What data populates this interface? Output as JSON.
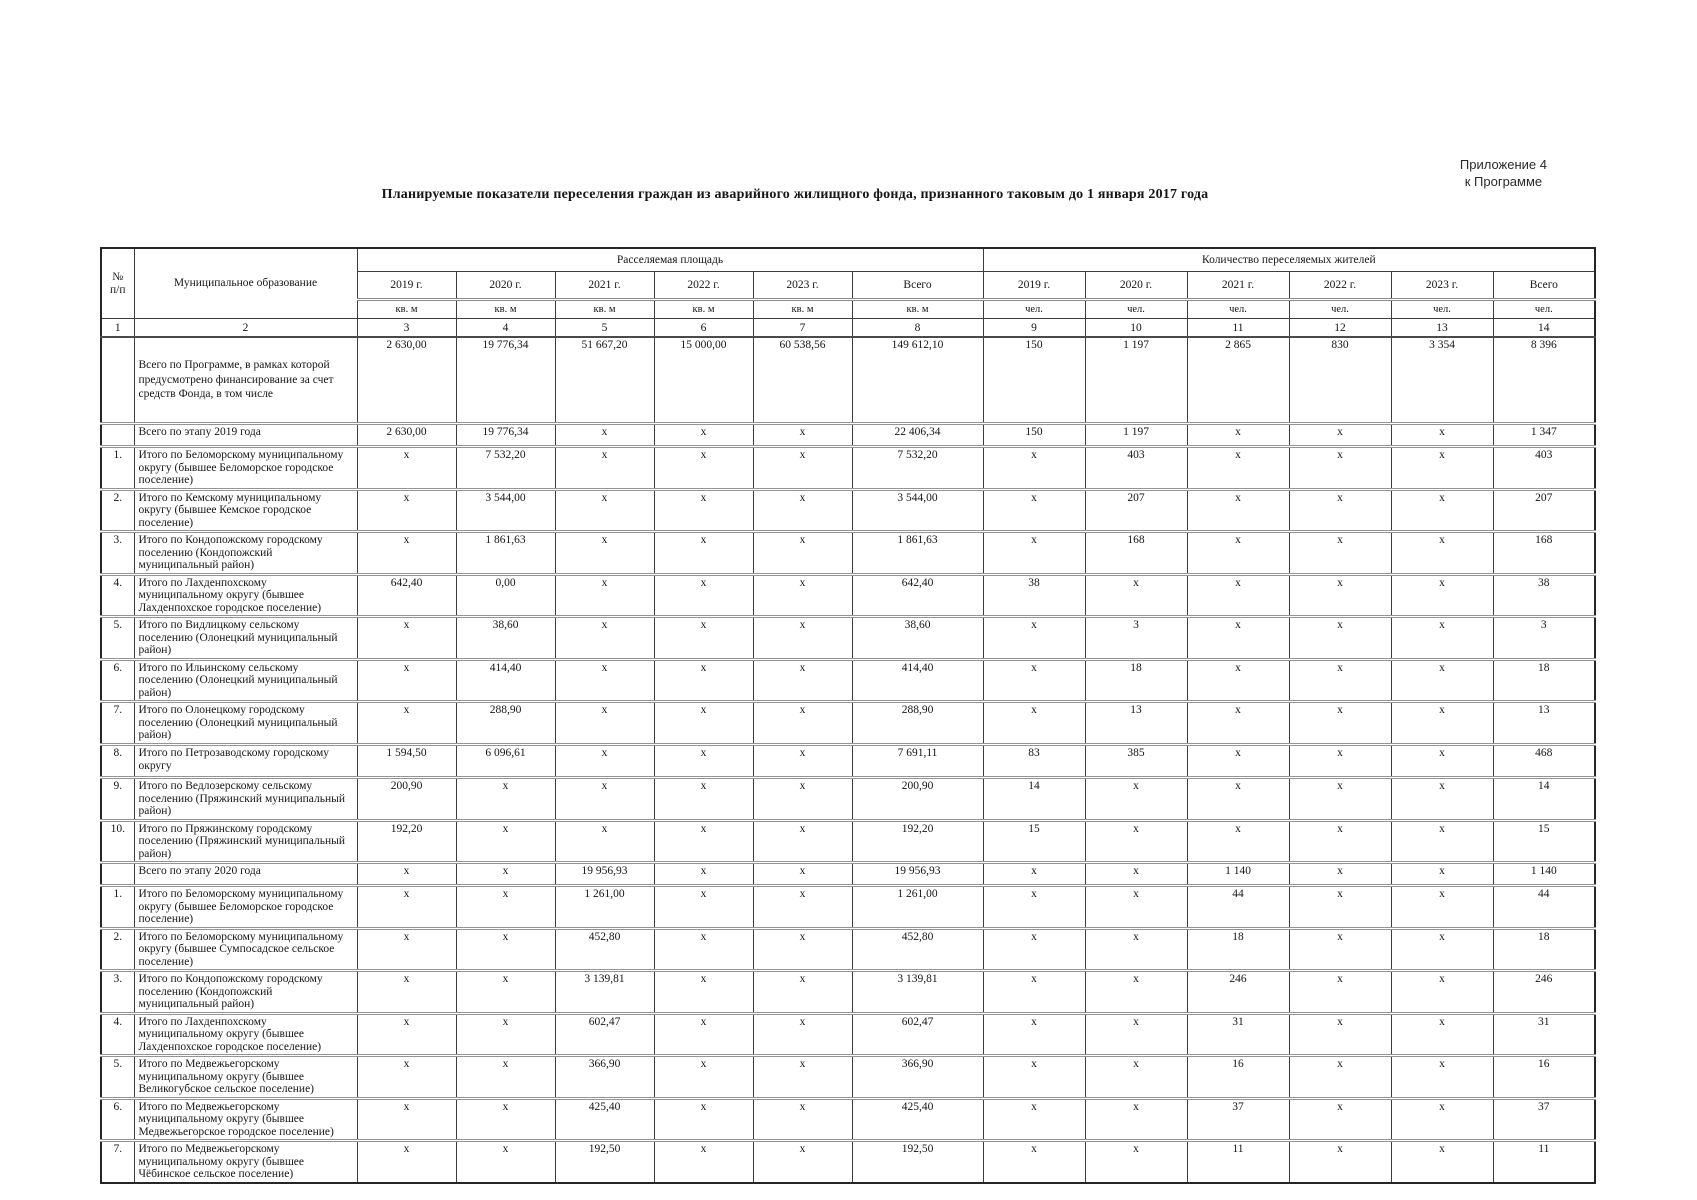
{
  "page": {
    "appendix_line1": "Приложение 4",
    "appendix_line2": "к Программе",
    "title": "Планируемые показатели переселения граждан из аварийного жилищного фонда, признанного таковым до 1 января 2017 года"
  },
  "table": {
    "header": {
      "num_line1": "№",
      "num_line2": "п/п",
      "municipality": "Муниципальное образование",
      "group_area": "Расселяемая площадь",
      "group_people": "Количество переселяемых жителей",
      "years": [
        "2019 г.",
        "2020 г.",
        "2021 г.",
        "2022 г.",
        "2023 г.",
        "Всего"
      ],
      "unit_area": "кв. м",
      "unit_people": "чел.",
      "col_numbers": [
        "1",
        "2",
        "3",
        "4",
        "5",
        "6",
        "7",
        "8",
        "9",
        "10",
        "11",
        "12",
        "13",
        "14"
      ]
    },
    "rows": [
      {
        "kind": "program",
        "num": "",
        "label": "Всего по Программе, в рамках которой предусмотрено финансирование за счет средств Фонда, в том числе",
        "values": [
          "2 630,00",
          "19 776,34",
          "51 667,20",
          "15 000,00",
          "60 538,56",
          "149 612,10",
          "150",
          "1 197",
          "2 865",
          "830",
          "3 354",
          "8 396"
        ]
      },
      {
        "kind": "stage",
        "num": "",
        "label": "Всего по этапу 2019 года",
        "values": [
          "2 630,00",
          "19 776,34",
          "x",
          "x",
          "x",
          "22 406,34",
          "150",
          "1 197",
          "x",
          "x",
          "x",
          "1 347"
        ]
      },
      {
        "kind": "item",
        "num": "1.",
        "label": "Итого по Беломорскому муниципальному округу (бывшее Беломорское городское поселение)",
        "values": [
          "x",
          "7 532,20",
          "x",
          "x",
          "x",
          "7 532,20",
          "x",
          "403",
          "x",
          "x",
          "x",
          "403"
        ]
      },
      {
        "kind": "item",
        "num": "2.",
        "label": "Итого по Кемскому муниципальному округу (бывшее Кемское городское поселение)",
        "values": [
          "x",
          "3 544,00",
          "x",
          "x",
          "x",
          "3 544,00",
          "x",
          "207",
          "x",
          "x",
          "x",
          "207"
        ]
      },
      {
        "kind": "item",
        "num": "3.",
        "label": "Итого по Кондопожскому городскому поселению (Кондопожский муниципальный район)",
        "values": [
          "x",
          "1 861,63",
          "x",
          "x",
          "x",
          "1 861,63",
          "x",
          "168",
          "x",
          "x",
          "x",
          "168"
        ]
      },
      {
        "kind": "item",
        "num": "4.",
        "label": "Итого по Лахденпохскому муниципальному округу (бывшее Лахденпохское городское поселение)",
        "values": [
          "642,40",
          "0,00",
          "x",
          "x",
          "x",
          "642,40",
          "38",
          "x",
          "x",
          "x",
          "x",
          "38"
        ]
      },
      {
        "kind": "item",
        "num": "5.",
        "label": "Итого по Видлицкому сельскому поселению (Олонецкий муниципальный район)",
        "values": [
          "x",
          "38,60",
          "x",
          "x",
          "x",
          "38,60",
          "x",
          "3",
          "x",
          "x",
          "x",
          "3"
        ]
      },
      {
        "kind": "item",
        "num": "6.",
        "label": "Итого по Ильинскому сельскому поселению (Олонецкий муниципальный район)",
        "values": [
          "x",
          "414,40",
          "x",
          "x",
          "x",
          "414,40",
          "x",
          "18",
          "x",
          "x",
          "x",
          "18"
        ]
      },
      {
        "kind": "item",
        "num": "7.",
        "label": "Итого по Олонецкому городскому поселению (Олонецкий муниципальный район)",
        "values": [
          "x",
          "288,90",
          "x",
          "x",
          "x",
          "288,90",
          "x",
          "13",
          "x",
          "x",
          "x",
          "13"
        ]
      },
      {
        "kind": "item",
        "num": "8.",
        "label": "Итого по Петрозаводскому городскому округу",
        "values": [
          "1 594,50",
          "6 096,61",
          "x",
          "x",
          "x",
          "7 691,11",
          "83",
          "385",
          "x",
          "x",
          "x",
          "468"
        ]
      },
      {
        "kind": "item",
        "num": "9.",
        "label": "Итого по Ведлозерскому сельскому поселению (Пряжинский муниципальный район)",
        "values": [
          "200,90",
          "x",
          "x",
          "x",
          "x",
          "200,90",
          "14",
          "x",
          "x",
          "x",
          "x",
          "14"
        ]
      },
      {
        "kind": "item",
        "num": "10.",
        "label": "Итого по Пряжинскому городскому поселению (Пряжинский муниципальный район)",
        "values": [
          "192,20",
          "x",
          "x",
          "x",
          "x",
          "192,20",
          "15",
          "x",
          "x",
          "x",
          "x",
          "15"
        ]
      },
      {
        "kind": "stage",
        "num": "",
        "label": "Всего по этапу 2020 года",
        "values": [
          "x",
          "x",
          "19 956,93",
          "x",
          "x",
          "19 956,93",
          "x",
          "x",
          "1 140",
          "x",
          "x",
          "1 140"
        ]
      },
      {
        "kind": "item",
        "num": "1.",
        "label": "Итого по Беломорскому муниципальному округу (бывшее Беломорское городское поселение)",
        "values": [
          "x",
          "x",
          "1 261,00",
          "x",
          "x",
          "1 261,00",
          "x",
          "x",
          "44",
          "x",
          "x",
          "44"
        ]
      },
      {
        "kind": "item",
        "num": "2.",
        "label": "Итого по Беломорскому муниципальному округу (бывшее Сумпосадское сельское поселение)",
        "values": [
          "x",
          "x",
          "452,80",
          "x",
          "x",
          "452,80",
          "x",
          "x",
          "18",
          "x",
          "x",
          "18"
        ]
      },
      {
        "kind": "item",
        "num": "3.",
        "label": "Итого по Кондопожскому городскому поселению (Кондопожский муниципальный район)",
        "values": [
          "x",
          "x",
          "3 139,81",
          "x",
          "x",
          "3 139,81",
          "x",
          "x",
          "246",
          "x",
          "x",
          "246"
        ]
      },
      {
        "kind": "item",
        "num": "4.",
        "label": "Итого по Лахденпохскому муниципальному округу (бывшее Лахденпохское городское поселение)",
        "values": [
          "x",
          "x",
          "602,47",
          "x",
          "x",
          "602,47",
          "x",
          "x",
          "31",
          "x",
          "x",
          "31"
        ]
      },
      {
        "kind": "item",
        "num": "5.",
        "label": "Итого по Медвежьегорскому муниципальному округу (бывшее Великогубское сельское поселение)",
        "values": [
          "x",
          "x",
          "366,90",
          "x",
          "x",
          "366,90",
          "x",
          "x",
          "16",
          "x",
          "x",
          "16"
        ]
      },
      {
        "kind": "item",
        "num": "6.",
        "label": "Итого по Медвежьегорскому муниципальному округу (бывшее Медвежьегорское городское поселение)",
        "values": [
          "x",
          "x",
          "425,40",
          "x",
          "x",
          "425,40",
          "x",
          "x",
          "37",
          "x",
          "x",
          "37"
        ]
      },
      {
        "kind": "item",
        "num": "7.",
        "label": "Итого по Медвежьегорскому муниципальному округу (бывшее Чёбинское сельское поселение)",
        "values": [
          "x",
          "x",
          "192,50",
          "x",
          "x",
          "192,50",
          "x",
          "x",
          "11",
          "x",
          "x",
          "11"
        ]
      }
    ]
  }
}
